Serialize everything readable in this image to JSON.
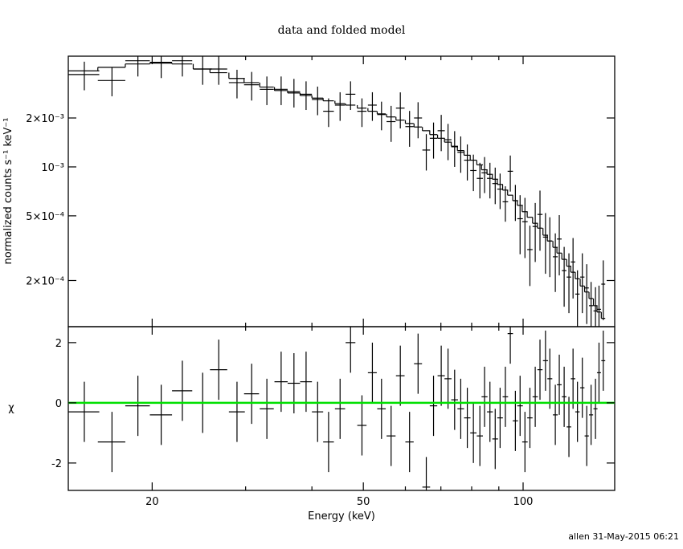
{
  "chart_data": {
    "type": "spectrum",
    "title": "data and folded model",
    "xlabel": "Energy (keV)",
    "ylabel": "normalized counts s⁻¹ keV⁻¹",
    "rlabel": "χ",
    "log_x": true,
    "log_y": true,
    "color": "#000000",
    "model_color": "#000000",
    "xlim": [
      13.9,
      148.8
    ],
    "xticks": [
      20,
      50,
      100
    ],
    "xminor": [
      30,
      40,
      60,
      70,
      80,
      90
    ],
    "ylim": [
      0.000104,
      0.0048
    ],
    "yticks": [
      {
        "value": 0.0002,
        "label": "2×10⁻⁴"
      },
      {
        "value": 0.0005,
        "label": "5×10⁻⁴"
      },
      {
        "value": 0.001,
        "label": "10⁻³"
      },
      {
        "value": 0.002,
        "label": "2×10⁻³"
      }
    ],
    "rlim": [
      -2.91,
      2.53
    ],
    "rticks": [
      -2,
      0,
      2
    ],
    "reference_line": {
      "value": 0,
      "color": "#00e000"
    },
    "residual_err": 1,
    "x": [
      14.9,
      16.8,
      18.8,
      20.8,
      22.8,
      24.9,
      26.7,
      28.9,
      30.8,
      32.9,
      35.0,
      37.0,
      39.0,
      41.0,
      43.0,
      45.2,
      47.3,
      49.7,
      52.0,
      54.1,
      56.4,
      58.7,
      61.1,
      63.4,
      65.7,
      67.8,
      70.1,
      72.2,
      74.3,
      76.3,
      78.5,
      80.6,
      82.9,
      84.6,
      86.6,
      88.6,
      90.5,
      92.6,
      94.6,
      96.7,
      98.7,
      100.8,
      103,
      105.4,
      107.6,
      110.2,
      112.3,
      115,
      117,
      119.5,
      122,
      124.2,
      126.6,
      129.3,
      131.8,
      134.3,
      136.9,
      139,
      141.6
    ],
    "xerr": [
      1.0,
      1.0,
      1.0,
      1.0,
      1.0,
      1.0,
      1.0,
      1.0,
      1.0,
      1.0,
      1.0,
      1.0,
      1.0,
      1.0,
      1.0,
      1.0,
      1.0,
      1.0,
      1.0,
      1.0,
      1.1,
      1.1,
      1.1,
      1.1,
      1.1,
      1.1,
      1.1,
      1.1,
      1.1,
      1.1,
      1.1,
      1.1,
      1.1,
      1.1,
      1.1,
      1.1,
      1.1,
      1.1,
      1.1,
      1.1,
      1.2,
      1.2,
      1.2,
      1.2,
      1.2,
      1.2,
      1.2,
      1.2,
      1.2,
      1.2,
      1.2,
      1.2,
      1.2,
      1.2,
      1.2,
      1.2,
      1.2,
      1.2,
      1.2
    ],
    "values": [
      0.0037,
      0.0034,
      0.0045,
      0.0044,
      0.0045,
      0.004,
      0.004,
      0.0033,
      0.0032,
      0.003,
      0.003,
      0.0029,
      0.0028,
      0.0026,
      0.0022,
      0.0024,
      0.0028,
      0.0022,
      0.0024,
      0.0021,
      0.0019,
      0.0023,
      0.00177,
      0.002,
      0.00127,
      0.0015,
      0.00167,
      0.00147,
      0.00133,
      0.00123,
      0.0011,
      0.00095,
      0.00085,
      0.00092,
      0.00085,
      0.00079,
      0.00073,
      0.00061,
      0.00094,
      0.00062,
      0.00048,
      0.00046,
      0.00031,
      0.00043,
      0.00051,
      0.00037,
      0.00035,
      0.00028,
      0.00036,
      0.00023,
      0.00021,
      0.00026,
      0.000165,
      0.00021,
      0.00018,
      0.00014,
      0.00013,
      0.000133,
      0.00019
    ],
    "yerr": [
      0.00074,
      0.00068,
      0.0009,
      0.00088,
      0.0009,
      0.0008,
      0.0008,
      0.00066,
      0.00064,
      0.0006,
      0.0006,
      0.00058,
      0.00056,
      0.00052,
      0.00044,
      0.00048,
      0.00056,
      0.00044,
      0.00048,
      0.00042,
      0.000475,
      0.000575,
      0.00044,
      0.0005,
      0.00032,
      0.000375,
      0.00042,
      0.00037,
      0.00033,
      0.00031,
      0.000275,
      0.00024,
      0.00021,
      0.00023,
      0.00021,
      0.0002,
      0.00018,
      0.00015,
      0.000235,
      0.000155,
      0.00019,
      0.000185,
      0.000125,
      0.00017,
      0.000205,
      0.00015,
      0.00014,
      0.00011,
      0.000145,
      9.2e-05,
      8.4e-05,
      0.000105,
      6.6e-05,
      8.4e-05,
      7.2e-05,
      5.6e-05,
      5.2e-05,
      5.3e-05,
      7.6e-05
    ],
    "model": [
      0.0039,
      0.0041,
      0.0043,
      0.00435,
      0.0043,
      0.004,
      0.0038,
      0.0035,
      0.0033,
      0.0031,
      0.00295,
      0.00285,
      0.00275,
      0.00265,
      0.00255,
      0.00245,
      0.0024,
      0.0023,
      0.0022,
      0.00212,
      0.00203,
      0.00194,
      0.00185,
      0.00176,
      0.00167,
      0.00158,
      0.0015,
      0.00142,
      0.00134,
      0.00126,
      0.00118,
      0.0011,
      0.00103,
      0.00096,
      0.0009,
      0.00084,
      0.00078,
      0.00072,
      0.00067,
      0.00062,
      0.00058,
      0.00053,
      0.00049,
      0.00045,
      0.00042,
      0.00038,
      0.00035,
      0.00032,
      0.000295,
      0.00027,
      0.000245,
      0.000225,
      0.000205,
      0.000185,
      0.00017,
      0.000155,
      0.00014,
      0.000128,
      0.000117
    ],
    "residuals": [
      -0.3,
      -1.3,
      -0.1,
      -0.4,
      0.4,
      0,
      1.1,
      -0.3,
      0.3,
      -0.2,
      0.7,
      0.65,
      0.7,
      -0.3,
      -1.3,
      -0.2,
      2.0,
      -0.75,
      1.0,
      -0.2,
      -1.1,
      0.9,
      -1.3,
      1.3,
      -2.8,
      -0.1,
      0.9,
      0.8,
      0.1,
      -0.2,
      -0.5,
      -1.0,
      -1.1,
      0.2,
      -0.3,
      -1.2,
      -0.5,
      0.2,
      2.3,
      -0.6,
      -0.1,
      -1.3,
      -0.5,
      0.2,
      1.1,
      1.4,
      0.8,
      -0.4,
      0.6,
      0.2,
      -0.8,
      0.8,
      -0.3,
      0.5,
      -1.1,
      -0.4,
      -0.2,
      1.0,
      1.4
    ]
  },
  "footer": "allen 31-May-2015 06:21"
}
